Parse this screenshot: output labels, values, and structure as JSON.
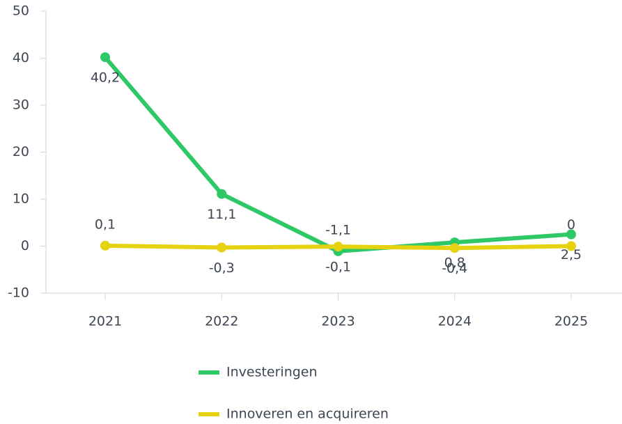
{
  "chart_data": {
    "type": "line",
    "categories": [
      "2021",
      "2022",
      "2023",
      "2024",
      "2025"
    ],
    "series": [
      {
        "name": "Investeringen",
        "color": "#2ec866",
        "values": [
          40.2,
          11.1,
          -1.1,
          0.8,
          2.5
        ],
        "value_labels": [
          "40,2",
          "11,1",
          "-1,1",
          "0,8",
          "2,5"
        ]
      },
      {
        "name": "Innoveren en acquireren",
        "color": "#e6d20f",
        "values": [
          0.1,
          -0.3,
          -0.1,
          -0.4,
          0
        ],
        "value_labels": [
          "0,1",
          "-0,3",
          "-0,1",
          "-0,4",
          "0"
        ]
      }
    ],
    "ylim": [
      -10,
      50
    ],
    "yticks": [
      -10,
      0,
      10,
      20,
      30,
      40,
      50
    ],
    "grid": false,
    "legend": "bottom"
  }
}
